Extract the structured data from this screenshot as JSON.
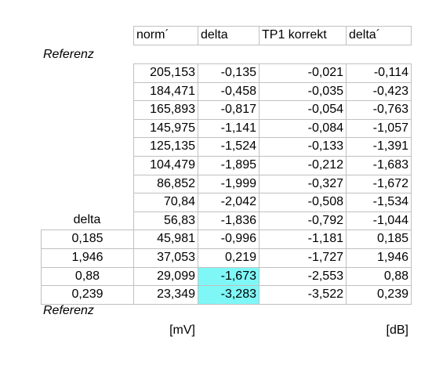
{
  "top_label": "Referenz",
  "header": [
    "norm´",
    "delta",
    "TP1 korrekt",
    "delta´"
  ],
  "rows": [
    [
      "205,153",
      "-0,135",
      "-0,021",
      "-0,114"
    ],
    [
      "184,471",
      "-0,458",
      "-0,035",
      "-0,423"
    ],
    [
      "165,893",
      "-0,817",
      "-0,054",
      "-0,763"
    ],
    [
      "145,975",
      "-1,141",
      "-0,084",
      "-1,057"
    ],
    [
      "125,135",
      "-1,524",
      "-0,133",
      "-1,391"
    ],
    [
      "104,479",
      "-1,895",
      "-0,212",
      "-1,683"
    ],
    [
      "86,852",
      "-1,999",
      "-0,327",
      "-1,672"
    ],
    [
      "70,84",
      "-2,042",
      "-0,508",
      "-1,534"
    ],
    [
      "56,83",
      "-1,836",
      "-0,792",
      "-1,044"
    ],
    [
      "45,981",
      "-0,996",
      "-1,181",
      "0,185"
    ],
    [
      "37,053",
      "0,219",
      "-1,727",
      "1,946"
    ],
    [
      "29,099",
      "-1,673",
      "-2,553",
      "0,88"
    ],
    [
      "23,349",
      "-3,283",
      "-3,522",
      "0,239"
    ]
  ],
  "left_column": {
    "label": "delta",
    "values": [
      "0,185",
      "1,946",
      "0,88",
      "0,239"
    ]
  },
  "bottom_label": "Referenz",
  "units": [
    "[mV]",
    "[dB]"
  ]
}
